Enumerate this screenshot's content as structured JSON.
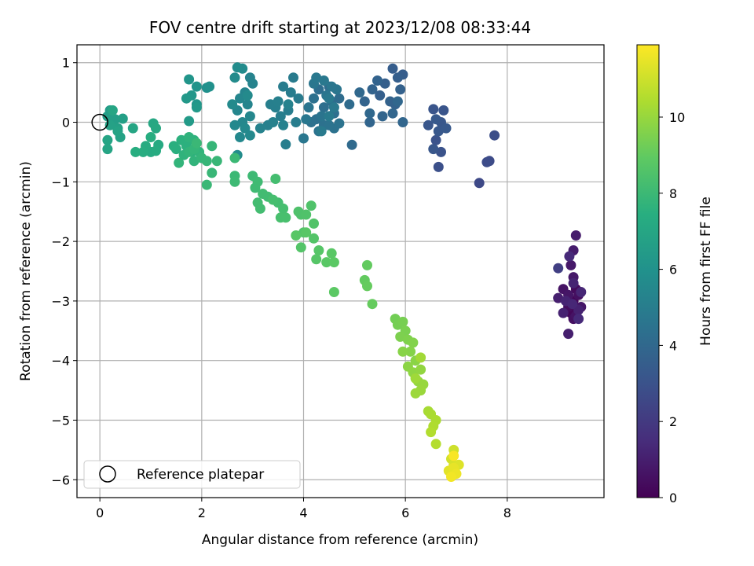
{
  "chart_data": {
    "type": "scatter",
    "title": "FOV centre drift starting at 2023/12/08 08:33:44",
    "xlabel": "Angular distance from reference (arcmin)",
    "ylabel": "Rotation from reference (arcmin)",
    "xlim": [
      -0.45,
      9.9
    ],
    "ylim": [
      -6.3,
      1.3
    ],
    "xticks": [
      0,
      2,
      4,
      6,
      8
    ],
    "yticks": [
      1,
      0,
      -1,
      -2,
      -3,
      -4,
      -5,
      -6
    ],
    "grid": true,
    "legend": {
      "placement": "lower-left",
      "entries": [
        "Reference platepar"
      ]
    },
    "reference_point": {
      "x": 0,
      "y": 0,
      "label": "Reference platepar"
    },
    "colorbar": {
      "label": "Hours from first FF file",
      "range": [
        0,
        11.9
      ],
      "ticks": [
        0,
        2,
        4,
        6,
        8,
        10
      ],
      "colormap": "viridis"
    },
    "series": [
      {
        "color_by": "hours",
        "points": [
          [
            9.3,
            -3.0,
            0.1
          ],
          [
            9.25,
            -3.2,
            0.2
          ],
          [
            9.35,
            -2.8,
            0.3
          ],
          [
            9.2,
            -3.1,
            0.4
          ],
          [
            9.4,
            -2.9,
            0.5
          ],
          [
            9.3,
            -3.3,
            0.5
          ],
          [
            9.1,
            -2.8,
            0.6
          ],
          [
            9.35,
            -3.25,
            0.6
          ],
          [
            9.45,
            -3.1,
            0.7
          ],
          [
            9.2,
            -2.9,
            0.7
          ],
          [
            9.3,
            -2.6,
            0.8
          ],
          [
            9.25,
            -2.4,
            0.8
          ],
          [
            9.3,
            -2.15,
            0.9
          ],
          [
            9.35,
            -1.9,
            0.9
          ],
          [
            9.2,
            -3.55,
            1.0
          ],
          [
            9.0,
            -2.95,
            1.0
          ],
          [
            9.1,
            -3.2,
            1.1
          ],
          [
            9.4,
            -3.15,
            1.1
          ],
          [
            9.3,
            -2.7,
            1.2
          ],
          [
            9.15,
            -3.0,
            1.2
          ],
          [
            9.45,
            -2.85,
            1.3
          ],
          [
            9.28,
            -3.05,
            1.3
          ],
          [
            9.22,
            -2.25,
            1.4
          ],
          [
            9.4,
            -3.3,
            1.4
          ],
          [
            9.0,
            -2.45,
            2.2
          ],
          [
            7.45,
            -1.02,
            2.6
          ],
          [
            7.65,
            -0.65,
            2.7
          ],
          [
            7.6,
            -0.67,
            2.75
          ],
          [
            7.75,
            -0.22,
            2.8
          ],
          [
            6.65,
            -0.75,
            2.9
          ],
          [
            6.7,
            -0.5,
            3.0
          ],
          [
            6.6,
            -0.3,
            3.0
          ],
          [
            6.55,
            0.22,
            3.1
          ],
          [
            6.75,
            0.2,
            3.1
          ],
          [
            6.45,
            -0.05,
            3.15
          ],
          [
            6.55,
            -0.45,
            3.2
          ],
          [
            6.7,
            0.0,
            3.2
          ],
          [
            6.65,
            -0.15,
            3.25
          ],
          [
            6.8,
            -0.1,
            3.3
          ],
          [
            6.6,
            0.05,
            3.3
          ],
          [
            5.95,
            0.8,
            3.5
          ],
          [
            5.75,
            0.9,
            3.5
          ],
          [
            5.85,
            0.75,
            3.55
          ],
          [
            5.6,
            0.65,
            3.6
          ],
          [
            5.5,
            0.45,
            3.6
          ],
          [
            5.9,
            0.55,
            3.65
          ],
          [
            5.7,
            0.35,
            3.7
          ],
          [
            5.8,
            0.3,
            3.7
          ],
          [
            5.35,
            0.55,
            3.75
          ],
          [
            5.45,
            0.7,
            3.75
          ],
          [
            5.2,
            0.35,
            3.8
          ],
          [
            5.55,
            0.1,
            3.85
          ],
          [
            5.3,
            0.0,
            3.85
          ],
          [
            5.75,
            0.15,
            3.9
          ],
          [
            5.95,
            0.0,
            3.9
          ],
          [
            5.85,
            0.35,
            3.95
          ],
          [
            5.3,
            0.15,
            4.0
          ],
          [
            5.1,
            0.5,
            4.0
          ],
          [
            4.95,
            -0.38,
            4.1
          ],
          [
            4.9,
            0.3,
            4.15
          ],
          [
            4.7,
            0.4,
            4.2
          ],
          [
            4.5,
            0.6,
            4.2
          ],
          [
            4.55,
            0.35,
            4.25
          ],
          [
            4.3,
            0.55,
            4.25
          ],
          [
            4.4,
            0.25,
            4.3
          ],
          [
            4.6,
            0.15,
            4.3
          ],
          [
            4.2,
            0.4,
            4.35
          ],
          [
            4.25,
            0.05,
            4.35
          ],
          [
            4.4,
            -0.05,
            4.4
          ],
          [
            4.15,
            0.0,
            4.4
          ],
          [
            4.6,
            -0.1,
            4.45
          ],
          [
            4.3,
            -0.15,
            4.45
          ],
          [
            4.5,
            -0.05,
            4.5
          ],
          [
            4.7,
            -0.02,
            4.5
          ],
          [
            4.1,
            0.25,
            4.55
          ],
          [
            4.35,
            0.1,
            4.55
          ],
          [
            4.45,
            0.45,
            4.6
          ],
          [
            4.65,
            0.55,
            4.6
          ],
          [
            4.55,
            0.6,
            4.65
          ],
          [
            4.2,
            0.65,
            4.65
          ],
          [
            4.0,
            -0.27,
            4.7
          ],
          [
            4.05,
            0.05,
            4.7
          ],
          [
            4.25,
            0.75,
            4.75
          ],
          [
            4.4,
            0.7,
            4.75
          ],
          [
            4.5,
            0.4,
            4.8
          ],
          [
            4.6,
            0.25,
            4.8
          ],
          [
            4.35,
            -0.15,
            4.85
          ],
          [
            4.5,
            0.1,
            4.85
          ],
          [
            3.8,
            0.75,
            4.9
          ],
          [
            3.9,
            0.4,
            4.9
          ],
          [
            3.75,
            0.5,
            4.95
          ],
          [
            3.6,
            0.6,
            4.95
          ],
          [
            3.7,
            0.2,
            5.0
          ],
          [
            3.85,
            0.0,
            5.0
          ],
          [
            3.55,
            0.1,
            5.05
          ],
          [
            3.65,
            -0.37,
            5.05
          ],
          [
            3.45,
            0.25,
            5.1
          ],
          [
            3.35,
            0.3,
            5.1
          ],
          [
            3.5,
            0.35,
            5.15
          ],
          [
            3.3,
            -0.05,
            5.15
          ],
          [
            3.4,
            0.0,
            5.2
          ],
          [
            3.6,
            -0.05,
            5.2
          ],
          [
            3.15,
            -0.1,
            5.25
          ],
          [
            3.7,
            0.3,
            5.25
          ],
          [
            3.0,
            0.65,
            5.3
          ],
          [
            2.95,
            0.75,
            5.3
          ],
          [
            2.85,
            0.5,
            5.35
          ],
          [
            2.9,
            0.3,
            5.35
          ],
          [
            2.75,
            0.4,
            5.4
          ],
          [
            2.7,
            0.2,
            5.4
          ],
          [
            2.95,
            0.1,
            5.45
          ],
          [
            2.8,
            0.0,
            5.45
          ],
          [
            2.65,
            -0.05,
            5.5
          ],
          [
            2.75,
            -0.25,
            5.5
          ],
          [
            2.85,
            -0.1,
            5.55
          ],
          [
            2.95,
            -0.22,
            5.55
          ],
          [
            2.6,
            0.3,
            5.6
          ],
          [
            2.9,
            0.45,
            5.6
          ],
          [
            2.65,
            0.75,
            5.65
          ],
          [
            2.8,
            0.9,
            5.65
          ],
          [
            2.7,
            0.92,
            5.7
          ],
          [
            2.7,
            -0.55,
            5.7
          ],
          [
            2.1,
            0.58,
            5.9
          ],
          [
            2.15,
            0.6,
            5.95
          ],
          [
            1.9,
            0.6,
            6.1
          ],
          [
            1.75,
            0.72,
            6.15
          ],
          [
            1.9,
            0.3,
            6.2
          ],
          [
            1.8,
            0.45,
            6.25
          ],
          [
            1.7,
            0.4,
            6.3
          ],
          [
            1.9,
            0.25,
            6.35
          ],
          [
            1.75,
            0.02,
            6.4
          ],
          [
            0.2,
            0.2,
            6.5
          ],
          [
            0.15,
            0.1,
            6.55
          ],
          [
            0.3,
            0.05,
            6.6
          ],
          [
            0.45,
            0.06,
            6.65
          ],
          [
            0.35,
            -0.1,
            6.7
          ],
          [
            0.2,
            -0.05,
            6.75
          ],
          [
            0.4,
            -0.25,
            6.8
          ],
          [
            0.35,
            -0.15,
            6.85
          ],
          [
            0.15,
            -0.3,
            6.9
          ],
          [
            0.15,
            -0.45,
            6.95
          ],
          [
            0.65,
            -0.1,
            7.0
          ],
          [
            0.25,
            0.2,
            7.0
          ],
          [
            1.05,
            -0.02,
            7.1
          ],
          [
            1.1,
            -0.1,
            7.15
          ],
          [
            1.15,
            -0.38,
            7.2
          ],
          [
            1.0,
            -0.5,
            7.25
          ],
          [
            0.9,
            -0.4,
            7.3
          ],
          [
            1.1,
            -0.48,
            7.3
          ],
          [
            0.85,
            -0.5,
            7.35
          ],
          [
            0.7,
            -0.5,
            7.4
          ],
          [
            1.0,
            -0.25,
            7.4
          ],
          [
            1.45,
            -0.4,
            7.5
          ],
          [
            1.5,
            -0.45,
            7.5
          ],
          [
            1.6,
            -0.3,
            7.55
          ],
          [
            1.7,
            -0.4,
            7.55
          ],
          [
            1.85,
            -0.3,
            7.6
          ],
          [
            1.8,
            -0.5,
            7.6
          ],
          [
            1.75,
            -0.25,
            7.65
          ],
          [
            1.65,
            -0.55,
            7.65
          ],
          [
            1.95,
            -0.5,
            7.7
          ],
          [
            1.85,
            -0.65,
            7.7
          ],
          [
            1.75,
            -0.5,
            7.75
          ],
          [
            1.55,
            -0.68,
            7.75
          ],
          [
            1.85,
            -0.45,
            7.8
          ],
          [
            2.0,
            -0.6,
            7.8
          ],
          [
            2.1,
            -0.65,
            7.85
          ],
          [
            2.2,
            -0.4,
            7.85
          ],
          [
            2.3,
            -0.65,
            7.9
          ],
          [
            2.2,
            -0.85,
            7.9
          ],
          [
            1.9,
            -0.35,
            7.95
          ],
          [
            2.1,
            -1.05,
            7.95
          ],
          [
            2.65,
            -0.6,
            8.0
          ],
          [
            2.65,
            -0.9,
            8.0
          ],
          [
            2.65,
            -1.0,
            8.05
          ],
          [
            3.0,
            -0.9,
            8.05
          ],
          [
            3.1,
            -1.0,
            8.1
          ],
          [
            3.05,
            -1.1,
            8.1
          ],
          [
            3.2,
            -1.2,
            8.15
          ],
          [
            3.3,
            -1.25,
            8.15
          ],
          [
            3.1,
            -1.35,
            8.2
          ],
          [
            3.15,
            -1.45,
            8.2
          ],
          [
            3.45,
            -0.95,
            8.25
          ],
          [
            3.5,
            -1.35,
            8.25
          ],
          [
            3.4,
            -1.3,
            8.3
          ],
          [
            3.6,
            -1.45,
            8.3
          ],
          [
            3.55,
            -1.6,
            8.35
          ],
          [
            3.65,
            -1.6,
            8.35
          ],
          [
            3.9,
            -1.5,
            8.5
          ],
          [
            3.95,
            -1.55,
            8.5
          ],
          [
            4.05,
            -1.55,
            8.55
          ],
          [
            4.15,
            -1.4,
            8.55
          ],
          [
            4.2,
            -1.7,
            8.6
          ],
          [
            4.0,
            -1.85,
            8.6
          ],
          [
            3.95,
            -2.1,
            8.65
          ],
          [
            4.2,
            -1.95,
            8.65
          ],
          [
            4.3,
            -2.15,
            8.7
          ],
          [
            4.25,
            -2.3,
            8.7
          ],
          [
            3.85,
            -1.9,
            8.75
          ],
          [
            4.05,
            -1.85,
            8.75
          ],
          [
            4.45,
            -2.35,
            8.8
          ],
          [
            4.55,
            -2.2,
            8.8
          ],
          [
            4.6,
            -2.35,
            8.85
          ],
          [
            4.6,
            -2.85,
            8.85
          ],
          [
            5.25,
            -2.4,
            9.0
          ],
          [
            5.2,
            -2.65,
            9.0
          ],
          [
            5.25,
            -2.75,
            9.05
          ],
          [
            5.35,
            -3.05,
            9.05
          ],
          [
            5.8,
            -3.3,
            9.3
          ],
          [
            5.85,
            -3.4,
            9.35
          ],
          [
            5.95,
            -3.35,
            9.4
          ],
          [
            6.0,
            -3.5,
            9.45
          ],
          [
            5.9,
            -3.6,
            9.5
          ],
          [
            6.05,
            -3.65,
            9.55
          ],
          [
            6.15,
            -3.7,
            9.6
          ],
          [
            6.1,
            -3.85,
            9.65
          ],
          [
            5.95,
            -3.85,
            9.7
          ],
          [
            6.2,
            -4.0,
            9.75
          ],
          [
            6.05,
            -4.1,
            9.8
          ],
          [
            6.15,
            -4.2,
            9.85
          ],
          [
            6.3,
            -4.15,
            9.9
          ],
          [
            6.25,
            -4.35,
            9.95
          ],
          [
            6.35,
            -4.4,
            10.0
          ],
          [
            6.3,
            -4.5,
            10.05
          ],
          [
            6.2,
            -4.55,
            10.1
          ],
          [
            6.2,
            -4.3,
            10.15
          ],
          [
            6.3,
            -3.95,
            10.2
          ],
          [
            6.45,
            -4.85,
            10.3
          ],
          [
            6.5,
            -4.9,
            10.35
          ],
          [
            6.6,
            -5.0,
            10.4
          ],
          [
            6.55,
            -5.1,
            10.45
          ],
          [
            6.5,
            -5.2,
            10.5
          ],
          [
            6.6,
            -5.4,
            10.55
          ],
          [
            6.95,
            -5.5,
            11.0
          ],
          [
            6.9,
            -5.65,
            11.1
          ],
          [
            6.95,
            -5.75,
            11.2
          ],
          [
            7.05,
            -5.75,
            11.3
          ],
          [
            6.85,
            -5.85,
            11.4
          ],
          [
            6.95,
            -5.8,
            11.5
          ],
          [
            7.0,
            -5.9,
            11.6
          ],
          [
            6.9,
            -5.95,
            11.7
          ],
          [
            6.95,
            -5.6,
            11.8
          ]
        ]
      }
    ]
  }
}
